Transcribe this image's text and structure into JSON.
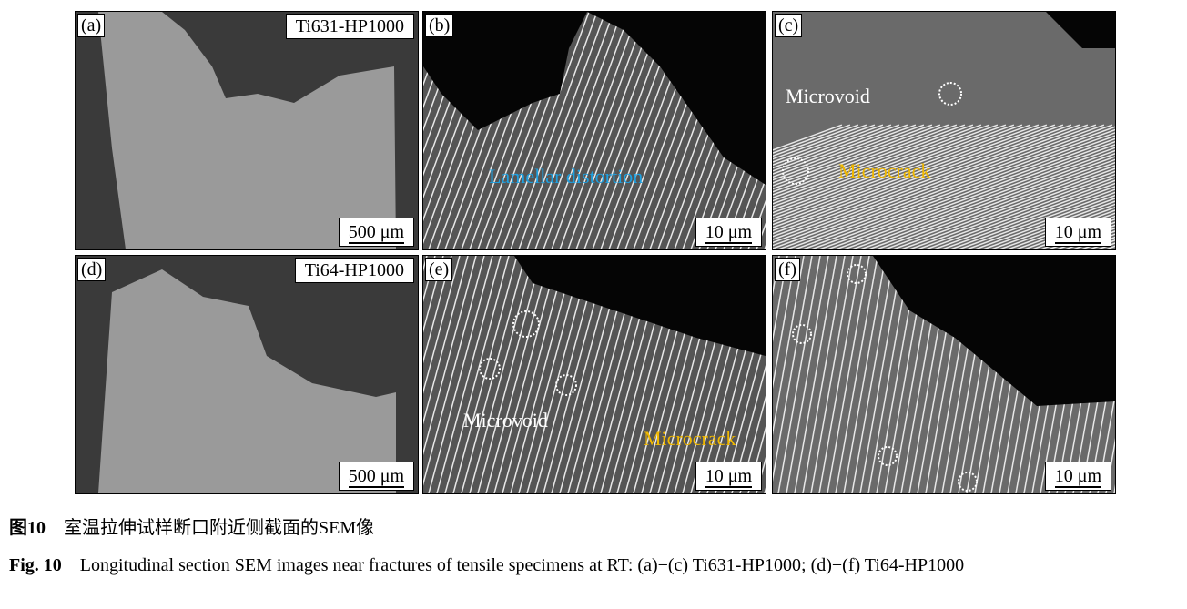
{
  "panels": [
    {
      "label": "(a)",
      "tag": "Ti631-HP1000",
      "scale": "500 μm"
    },
    {
      "label": "(b)",
      "scale": "10 μm",
      "annotation": "Lamellar distortion"
    },
    {
      "label": "(c)",
      "scale": "10 μm",
      "annotations": [
        "Microvoid",
        "Microcrack"
      ]
    },
    {
      "label": "(d)",
      "tag": "Ti64-HP1000",
      "scale": "500 μm"
    },
    {
      "label": "(e)",
      "scale": "10 μm",
      "annotations": [
        "Microvoid",
        "Microcrack"
      ]
    },
    {
      "label": "(f)",
      "scale": "10 μm"
    }
  ],
  "colors": {
    "cyan_annotation": "#1ea0e0",
    "yellow_annotation": "#f0b800",
    "white_annotation": "#ffffff"
  },
  "caption": {
    "cn_num": "图10",
    "cn_text": "室温拉伸试样断口附近侧截面的SEM像",
    "en_num": "Fig. 10",
    "en_text": "Longitudinal section SEM images near fractures of tensile specimens at RT: (a)−(c) Ti631-HP1000; (d)−(f) Ti64-HP1000"
  }
}
